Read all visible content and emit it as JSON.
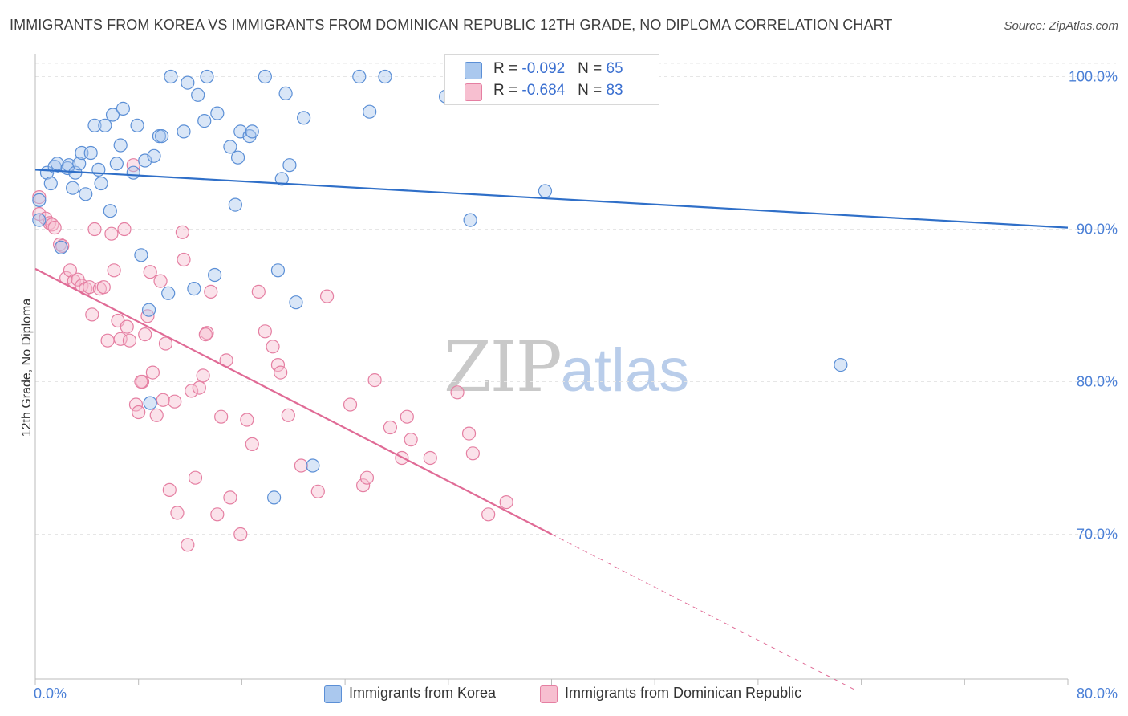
{
  "title": "IMMIGRANTS FROM KOREA VS IMMIGRANTS FROM DOMINICAN REPUBLIC 12TH GRADE, NO DIPLOMA CORRELATION CHART",
  "source": "Source: ZipAtlas.com",
  "watermark": {
    "part1": "ZIP",
    "part2": "atlas"
  },
  "legend": {
    "korea": {
      "r_label": "R = ",
      "r_value": "-0.092",
      "n_label": "N = ",
      "n_value": "65"
    },
    "dominican": {
      "r_label": "R = ",
      "r_value": "-0.684",
      "n_label": "N = ",
      "n_value": "83"
    }
  },
  "colors": {
    "korea_fill": "#aac8ee",
    "korea_stroke": "#5b8fd6",
    "korea_line": "#2f6fc8",
    "dominican_fill": "#f7bfd0",
    "dominican_stroke": "#e57fa2",
    "dominican_line": "#e06b96",
    "grid": "#e6e6e6",
    "axis_label": "#4a7fd6"
  },
  "chart_data": {
    "type": "scatter",
    "title": "IMMIGRANTS FROM KOREA VS IMMIGRANTS FROM DOMINICAN REPUBLIC 12TH GRADE, NO DIPLOMA CORRELATION CHART",
    "xlabel": "",
    "ylabel": "12th Grade, No Diploma",
    "xlim": [
      0,
      80
    ],
    "ylim": [
      60.5,
      101.5
    ],
    "x_tick_labels": [
      {
        "value": 0,
        "label": "0.0%"
      },
      {
        "value": 80,
        "label": "80.0%"
      }
    ],
    "y_tick_labels": [
      {
        "value": 100,
        "label": "100.0%"
      },
      {
        "value": 90,
        "label": "90.0%"
      },
      {
        "value": 80,
        "label": "80.0%"
      },
      {
        "value": 70,
        "label": "70.0%"
      }
    ],
    "grid": true,
    "legend_position": "top-center",
    "series": [
      {
        "name": "Immigrants from Korea",
        "trend": {
          "x": [
            0,
            80
          ],
          "y": [
            93.9,
            90.1
          ]
        },
        "points": [
          [
            0.3,
            90.6
          ],
          [
            0.3,
            91.9
          ],
          [
            0.9,
            93.7
          ],
          [
            1.2,
            93.0
          ],
          [
            1.5,
            94.1
          ],
          [
            1.7,
            94.3
          ],
          [
            2.0,
            88.8
          ],
          [
            2.5,
            94.0
          ],
          [
            2.6,
            94.2
          ],
          [
            2.9,
            92.7
          ],
          [
            3.1,
            93.7
          ],
          [
            3.4,
            94.3
          ],
          [
            3.6,
            95.0
          ],
          [
            3.9,
            92.3
          ],
          [
            4.3,
            95.0
          ],
          [
            4.6,
            96.8
          ],
          [
            4.9,
            93.9
          ],
          [
            5.1,
            93.0
          ],
          [
            5.4,
            96.8
          ],
          [
            5.8,
            91.2
          ],
          [
            6.0,
            97.5
          ],
          [
            6.3,
            94.3
          ],
          [
            6.6,
            95.5
          ],
          [
            6.8,
            97.9
          ],
          [
            7.6,
            93.7
          ],
          [
            7.9,
            96.8
          ],
          [
            8.2,
            88.3
          ],
          [
            8.5,
            94.5
          ],
          [
            8.8,
            84.7
          ],
          [
            8.9,
            78.6
          ],
          [
            9.2,
            94.8
          ],
          [
            9.6,
            96.1
          ],
          [
            9.8,
            96.1
          ],
          [
            10.3,
            85.8
          ],
          [
            10.5,
            100.0
          ],
          [
            11.5,
            96.4
          ],
          [
            11.8,
            99.6
          ],
          [
            12.3,
            86.1
          ],
          [
            12.6,
            98.8
          ],
          [
            13.1,
            97.1
          ],
          [
            13.3,
            100.0
          ],
          [
            13.9,
            87.0
          ],
          [
            14.1,
            97.6
          ],
          [
            15.1,
            95.4
          ],
          [
            15.5,
            91.6
          ],
          [
            15.7,
            94.7
          ],
          [
            15.9,
            96.4
          ],
          [
            16.6,
            96.1
          ],
          [
            16.8,
            96.4
          ],
          [
            17.8,
            100.0
          ],
          [
            18.5,
            72.4
          ],
          [
            18.8,
            87.3
          ],
          [
            19.1,
            93.3
          ],
          [
            19.4,
            98.9
          ],
          [
            19.7,
            94.2
          ],
          [
            20.2,
            85.2
          ],
          [
            20.8,
            97.3
          ],
          [
            21.5,
            74.5
          ],
          [
            25.1,
            100.0
          ],
          [
            25.9,
            97.7
          ],
          [
            27.1,
            100.0
          ],
          [
            31.8,
            98.7
          ],
          [
            33.7,
            90.6
          ],
          [
            39.5,
            92.5
          ],
          [
            62.4,
            81.1
          ]
        ]
      },
      {
        "name": "Immigrants from Dominican Republic",
        "trend": {
          "x": [
            0,
            40
          ],
          "y": [
            87.4,
            70.0
          ]
        },
        "trend_extension": {
          "x": [
            40,
            63.5
          ],
          "y": [
            70.0,
            59.8
          ]
        },
        "points": [
          [
            0.3,
            91.0
          ],
          [
            0.3,
            92.1
          ],
          [
            0.8,
            90.7
          ],
          [
            1.1,
            90.4
          ],
          [
            1.3,
            90.3
          ],
          [
            1.5,
            90.1
          ],
          [
            1.9,
            89.0
          ],
          [
            2.1,
            88.9
          ],
          [
            2.4,
            86.8
          ],
          [
            2.7,
            87.3
          ],
          [
            3.0,
            86.6
          ],
          [
            3.3,
            86.7
          ],
          [
            3.6,
            86.3
          ],
          [
            3.9,
            86.1
          ],
          [
            4.2,
            86.2
          ],
          [
            4.4,
            84.4
          ],
          [
            4.6,
            90.0
          ],
          [
            5.0,
            86.1
          ],
          [
            5.3,
            86.2
          ],
          [
            5.6,
            82.7
          ],
          [
            5.9,
            89.7
          ],
          [
            6.1,
            87.3
          ],
          [
            6.4,
            84.0
          ],
          [
            6.6,
            82.8
          ],
          [
            6.9,
            90.0
          ],
          [
            7.1,
            83.6
          ],
          [
            7.3,
            82.7
          ],
          [
            7.6,
            94.2
          ],
          [
            7.8,
            78.5
          ],
          [
            8.0,
            78.0
          ],
          [
            8.3,
            80.0
          ],
          [
            8.5,
            83.1
          ],
          [
            8.7,
            84.3
          ],
          [
            8.9,
            87.2
          ],
          [
            9.1,
            80.6
          ],
          [
            9.4,
            77.8
          ],
          [
            9.7,
            86.6
          ],
          [
            9.9,
            78.8
          ],
          [
            10.1,
            82.5
          ],
          [
            10.4,
            72.9
          ],
          [
            10.8,
            78.7
          ],
          [
            11.0,
            71.4
          ],
          [
            11.4,
            89.8
          ],
          [
            11.5,
            88.0
          ],
          [
            11.8,
            69.3
          ],
          [
            12.1,
            79.4
          ],
          [
            12.4,
            73.7
          ],
          [
            12.7,
            79.6
          ],
          [
            13.0,
            80.4
          ],
          [
            13.3,
            83.2
          ],
          [
            13.6,
            85.9
          ],
          [
            14.1,
            71.3
          ],
          [
            14.4,
            77.7
          ],
          [
            14.8,
            81.4
          ],
          [
            15.1,
            72.4
          ],
          [
            15.9,
            70.0
          ],
          [
            16.4,
            77.5
          ],
          [
            16.8,
            75.9
          ],
          [
            17.3,
            85.9
          ],
          [
            17.8,
            83.3
          ],
          [
            18.4,
            82.3
          ],
          [
            18.8,
            81.1
          ],
          [
            19.0,
            80.6
          ],
          [
            19.6,
            77.8
          ],
          [
            20.6,
            74.5
          ],
          [
            21.9,
            72.8
          ],
          [
            22.6,
            85.6
          ],
          [
            24.4,
            78.5
          ],
          [
            25.4,
            73.2
          ],
          [
            25.7,
            73.7
          ],
          [
            26.3,
            80.1
          ],
          [
            27.5,
            77.0
          ],
          [
            28.4,
            75.0
          ],
          [
            28.8,
            77.7
          ],
          [
            29.1,
            76.2
          ],
          [
            30.6,
            75.0
          ],
          [
            32.7,
            79.3
          ],
          [
            33.6,
            76.6
          ],
          [
            33.9,
            75.3
          ],
          [
            35.1,
            71.3
          ],
          [
            36.5,
            72.1
          ],
          [
            8.2,
            80.0
          ],
          [
            13.2,
            83.1
          ]
        ]
      }
    ]
  },
  "bottom_legend": {
    "korea": "Immigrants from Korea",
    "dominican": "Immigrants from Dominican Republic"
  }
}
